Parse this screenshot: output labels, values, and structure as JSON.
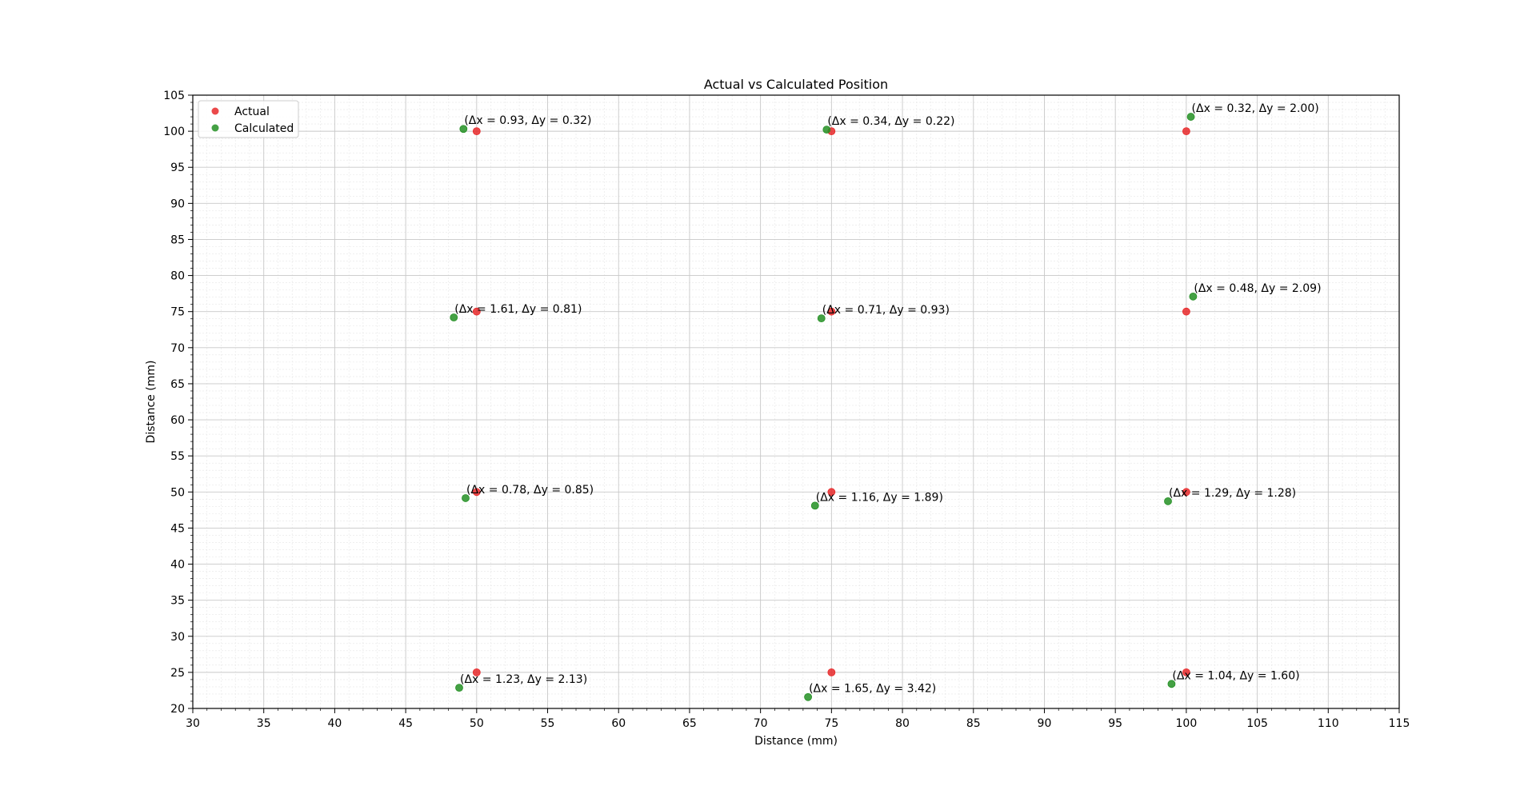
{
  "chart_data": {
    "type": "scatter",
    "title": "Actual vs Calculated Position",
    "xlabel": "Distance (mm)",
    "ylabel": "Distance (mm)",
    "xlim": [
      30,
      115
    ],
    "ylim": [
      20,
      105
    ],
    "xticks": [
      30,
      35,
      40,
      45,
      50,
      55,
      60,
      65,
      70,
      75,
      80,
      85,
      90,
      95,
      100,
      105,
      110,
      115
    ],
    "yticks": [
      20,
      25,
      30,
      35,
      40,
      45,
      50,
      55,
      60,
      65,
      70,
      75,
      80,
      85,
      90,
      95,
      100,
      105
    ],
    "grid": true,
    "minor_grid": true,
    "legend_position": "upper-left",
    "series": [
      {
        "name": "Actual",
        "color": "#e8292a",
        "points": [
          [
            50,
            100
          ],
          [
            75,
            100
          ],
          [
            100,
            100
          ],
          [
            50,
            75
          ],
          [
            75,
            75
          ],
          [
            100,
            75
          ],
          [
            50,
            50
          ],
          [
            75,
            50
          ],
          [
            100,
            50
          ],
          [
            50,
            25
          ],
          [
            75,
            25
          ],
          [
            100,
            25
          ]
        ]
      },
      {
        "name": "Calculated",
        "color": "#259125",
        "points": [
          [
            49.07,
            100.32
          ],
          [
            74.66,
            100.22
          ],
          [
            100.32,
            102.0
          ],
          [
            48.39,
            74.19
          ],
          [
            74.29,
            74.07
          ],
          [
            100.48,
            77.09
          ],
          [
            49.22,
            49.15
          ],
          [
            73.84,
            48.11
          ],
          [
            98.71,
            48.72
          ],
          [
            48.77,
            22.87
          ],
          [
            73.35,
            21.58
          ],
          [
            98.96,
            23.4
          ]
        ]
      }
    ],
    "annotations": [
      "(Δx = 0.93, Δy = 0.32)",
      "(Δx = 0.34, Δy = 0.22)",
      "(Δx = 0.32, Δy = 2.00)",
      "(Δx = 1.61, Δy = 0.81)",
      "(Δx = 0.71, Δy = 0.93)",
      "(Δx = 0.48, Δy = 2.09)",
      "(Δx = 0.78, Δy = 0.85)",
      "(Δx = 1.16, Δy = 1.89)",
      "(Δx = 1.29, Δy = 1.28)",
      "(Δx = 1.23, Δy = 2.13)",
      "(Δx = 1.65, Δy = 3.42)",
      "(Δx = 1.04, Δy = 1.60)"
    ]
  }
}
